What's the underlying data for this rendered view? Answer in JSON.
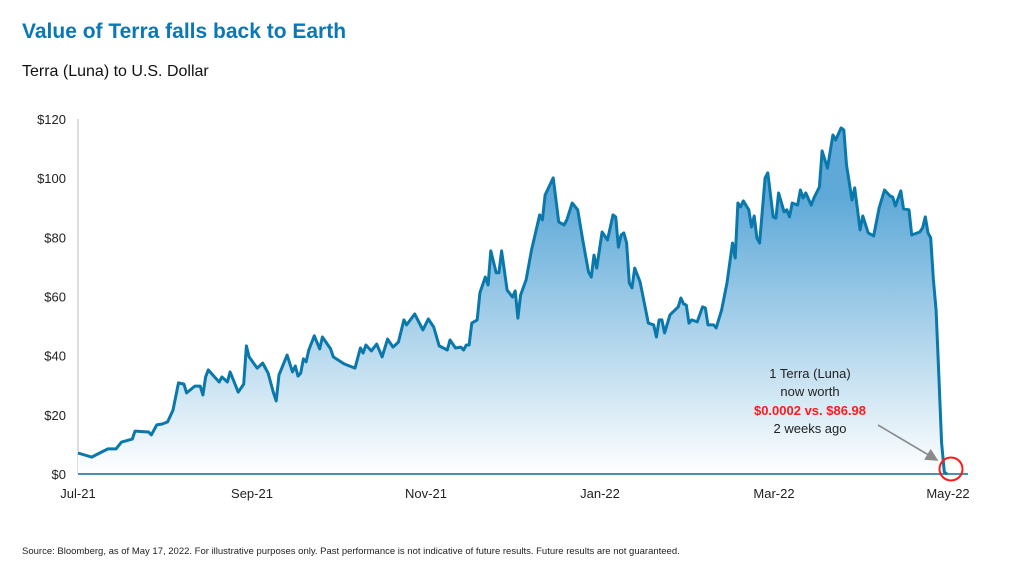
{
  "title": "Value of Terra falls back to Earth",
  "subtitle": "Terra (Luna) to U.S. Dollar",
  "source": "Source: Bloomberg, as of May 17, 2022. For illustrative purposes only. Past performance is not indicative of future results. Future results are not guaranteed.",
  "annotation": {
    "line1": "1 Terra (Luna)",
    "line2": "now worth",
    "line3": "$0.0002 vs. $86.98",
    "line4": "2 weeks ago",
    "highlight_color": "#ff1a1a"
  },
  "colors": {
    "title": "#0b78b5",
    "line": "#0a78ab",
    "fill_top": "#5ea9d8",
    "fill_bottom": "#ffffff"
  },
  "chart_data": {
    "type": "area",
    "title": "Value of Terra falls back to Earth",
    "subtitle": "Terra (Luna) to U.S. Dollar",
    "xlabel": "",
    "ylabel": "",
    "ylim": [
      0,
      120
    ],
    "xlim": [
      "2021-07-01",
      "2022-05-17"
    ],
    "grid": false,
    "y_ticks": [
      "$0",
      "$20",
      "$40",
      "$60",
      "$80",
      "$100",
      "$120"
    ],
    "x_ticks": [
      "Jul-21",
      "Sep-21",
      "Nov-21",
      "Jan-22",
      "Mar-22",
      "May-22"
    ],
    "points": [
      [
        "2021-07-01",
        7.1
      ],
      [
        "2021-07-06",
        5.7
      ],
      [
        "2021-07-12",
        8.5
      ],
      [
        "2021-07-15",
        8.5
      ],
      [
        "2021-07-17",
        10.8
      ],
      [
        "2021-07-21",
        11.8
      ],
      [
        "2021-07-22",
        14.5
      ],
      [
        "2021-07-27",
        14.2
      ],
      [
        "2021-07-28",
        13.2
      ],
      [
        "2021-07-30",
        16.6
      ],
      [
        "2021-08-01",
        16.9
      ],
      [
        "2021-08-03",
        17.6
      ],
      [
        "2021-08-05",
        21.6
      ],
      [
        "2021-08-07",
        30.8
      ],
      [
        "2021-08-09",
        30.4
      ],
      [
        "2021-08-10",
        27.4
      ],
      [
        "2021-08-13",
        29.7
      ],
      [
        "2021-08-15",
        29.7
      ],
      [
        "2021-08-16",
        26.7
      ],
      [
        "2021-08-17",
        32.8
      ],
      [
        "2021-08-18",
        35.2
      ],
      [
        "2021-08-20",
        33.1
      ],
      [
        "2021-08-22",
        31.1
      ],
      [
        "2021-08-23",
        32.8
      ],
      [
        "2021-08-25",
        31.1
      ],
      [
        "2021-08-26",
        34.5
      ],
      [
        "2021-08-29",
        27.7
      ],
      [
        "2021-08-31",
        30.4
      ],
      [
        "2021-09-01",
        43.3
      ],
      [
        "2021-09-02",
        39.6
      ],
      [
        "2021-09-05",
        35.8
      ],
      [
        "2021-09-07",
        37.5
      ],
      [
        "2021-09-09",
        34.1
      ],
      [
        "2021-09-11",
        27.4
      ],
      [
        "2021-09-12",
        24.7
      ],
      [
        "2021-09-13",
        33.5
      ],
      [
        "2021-09-16",
        40.2
      ],
      [
        "2021-09-18",
        34.5
      ],
      [
        "2021-09-19",
        36.5
      ],
      [
        "2021-09-20",
        33.1
      ],
      [
        "2021-09-21",
        34.1
      ],
      [
        "2021-09-22",
        38.9
      ],
      [
        "2021-09-23",
        37.9
      ],
      [
        "2021-09-24",
        41.9
      ],
      [
        "2021-09-26",
        46.7
      ],
      [
        "2021-09-28",
        42.3
      ],
      [
        "2021-09-29",
        46.3
      ],
      [
        "2021-10-02",
        42.3
      ],
      [
        "2021-10-03",
        39.6
      ],
      [
        "2021-10-07",
        37.2
      ],
      [
        "2021-10-11",
        35.8
      ],
      [
        "2021-10-13",
        42.6
      ],
      [
        "2021-10-14",
        40.9
      ],
      [
        "2021-10-15",
        43.6
      ],
      [
        "2021-10-17",
        41.6
      ],
      [
        "2021-10-19",
        43.9
      ],
      [
        "2021-10-21",
        39.6
      ],
      [
        "2021-10-23",
        45.6
      ],
      [
        "2021-10-25",
        42.9
      ],
      [
        "2021-10-27",
        44.6
      ],
      [
        "2021-10-29",
        52.1
      ],
      [
        "2021-10-30",
        50.4
      ],
      [
        "2021-11-02",
        54.1
      ],
      [
        "2021-11-05",
        48.7
      ],
      [
        "2021-11-07",
        52.4
      ],
      [
        "2021-11-09",
        49.7
      ],
      [
        "2021-11-11",
        43.3
      ],
      [
        "2021-11-14",
        41.9
      ],
      [
        "2021-11-15",
        45.3
      ],
      [
        "2021-11-17",
        42.6
      ],
      [
        "2021-11-19",
        42.9
      ],
      [
        "2021-11-20",
        41.9
      ],
      [
        "2021-11-21",
        43.6
      ],
      [
        "2021-11-22",
        43.6
      ],
      [
        "2021-11-23",
        51.0
      ],
      [
        "2021-11-25",
        52.1
      ],
      [
        "2021-11-26",
        61.2
      ],
      [
        "2021-11-28",
        66.6
      ],
      [
        "2021-11-29",
        63.9
      ],
      [
        "2021-11-30",
        75.4
      ],
      [
        "2021-12-02",
        68.0
      ],
      [
        "2021-12-03",
        68.0
      ],
      [
        "2021-12-04",
        75.4
      ],
      [
        "2021-12-06",
        62.2
      ],
      [
        "2021-12-08",
        59.8
      ],
      [
        "2021-12-09",
        61.9
      ],
      [
        "2021-12-10",
        52.7
      ],
      [
        "2021-12-11",
        60.5
      ],
      [
        "2021-12-13",
        65.6
      ],
      [
        "2021-12-15",
        75.7
      ],
      [
        "2021-12-18",
        87.6
      ],
      [
        "2021-12-19",
        85.9
      ],
      [
        "2021-12-20",
        94.3
      ],
      [
        "2021-12-23",
        100.1
      ],
      [
        "2021-12-25",
        85.2
      ],
      [
        "2021-12-27",
        84.2
      ],
      [
        "2021-12-28",
        85.9
      ],
      [
        "2021-12-30",
        91.6
      ],
      [
        "2022-01-01",
        89.3
      ],
      [
        "2022-01-03",
        78.4
      ],
      [
        "2022-01-05",
        68.3
      ],
      [
        "2022-01-06",
        66.6
      ],
      [
        "2022-01-07",
        74.0
      ],
      [
        "2022-01-08",
        69.6
      ],
      [
        "2022-01-10",
        81.8
      ],
      [
        "2022-01-12",
        79.1
      ],
      [
        "2022-01-14",
        87.6
      ],
      [
        "2022-01-15",
        86.9
      ],
      [
        "2022-01-16",
        76.7
      ],
      [
        "2022-01-17",
        80.8
      ],
      [
        "2022-01-18",
        81.5
      ],
      [
        "2022-01-19",
        78.1
      ],
      [
        "2022-01-20",
        64.6
      ],
      [
        "2022-01-21",
        62.9
      ],
      [
        "2022-01-22",
        69.6
      ],
      [
        "2022-01-24",
        64.9
      ],
      [
        "2022-01-27",
        51.0
      ],
      [
        "2022-01-29",
        50.4
      ],
      [
        "2022-01-30",
        46.3
      ],
      [
        "2022-01-31",
        52.1
      ],
      [
        "2022-02-01",
        52.1
      ],
      [
        "2022-02-02",
        47.7
      ],
      [
        "2022-02-04",
        53.8
      ],
      [
        "2022-02-07",
        56.5
      ],
      [
        "2022-02-08",
        59.5
      ],
      [
        "2022-02-09",
        57.5
      ],
      [
        "2022-02-10",
        57.1
      ],
      [
        "2022-02-11",
        51.0
      ],
      [
        "2022-02-12",
        52.1
      ],
      [
        "2022-02-14",
        51.4
      ],
      [
        "2022-02-16",
        56.5
      ],
      [
        "2022-02-17",
        56.1
      ],
      [
        "2022-02-18",
        50.4
      ],
      [
        "2022-02-20",
        50.4
      ],
      [
        "2022-02-21",
        49.4
      ],
      [
        "2022-02-23",
        55.4
      ],
      [
        "2022-02-25",
        64.6
      ],
      [
        "2022-02-27",
        78.1
      ],
      [
        "2022-02-28",
        73.0
      ],
      [
        "2022-03-01",
        91.6
      ],
      [
        "2022-03-02",
        90.3
      ],
      [
        "2022-03-03",
        92.3
      ],
      [
        "2022-03-05",
        89.3
      ],
      [
        "2022-03-06",
        83.5
      ],
      [
        "2022-03-07",
        87.2
      ],
      [
        "2022-03-08",
        79.8
      ],
      [
        "2022-03-09",
        78.1
      ],
      [
        "2022-03-11",
        100.1
      ],
      [
        "2022-03-12",
        101.8
      ],
      [
        "2022-03-14",
        86.9
      ],
      [
        "2022-03-15",
        86.5
      ],
      [
        "2022-03-16",
        95.0
      ],
      [
        "2022-03-18",
        88.6
      ],
      [
        "2022-03-19",
        89.3
      ],
      [
        "2022-03-20",
        86.9
      ],
      [
        "2022-03-21",
        91.6
      ],
      [
        "2022-03-23",
        90.9
      ],
      [
        "2022-03-24",
        96.0
      ],
      [
        "2022-03-25",
        93.3
      ],
      [
        "2022-03-26",
        95.0
      ],
      [
        "2022-03-28",
        90.9
      ],
      [
        "2022-03-29",
        93.3
      ],
      [
        "2022-03-31",
        97.0
      ],
      [
        "2022-04-01",
        109.2
      ],
      [
        "2022-04-03",
        103.4
      ],
      [
        "2022-04-05",
        114.6
      ],
      [
        "2022-04-06",
        112.9
      ],
      [
        "2022-04-08",
        117.0
      ],
      [
        "2022-04-09",
        116.3
      ],
      [
        "2022-04-10",
        104.5
      ],
      [
        "2022-04-12",
        92.6
      ],
      [
        "2022-04-13",
        96.7
      ],
      [
        "2022-04-15",
        82.5
      ],
      [
        "2022-04-16",
        87.2
      ],
      [
        "2022-04-18",
        81.5
      ],
      [
        "2022-04-20",
        80.5
      ],
      [
        "2022-04-22",
        89.9
      ],
      [
        "2022-04-24",
        96.0
      ],
      [
        "2022-04-26",
        94.0
      ],
      [
        "2022-04-27",
        93.6
      ],
      [
        "2022-04-28",
        90.6
      ],
      [
        "2022-04-30",
        95.7
      ],
      [
        "2022-05-01",
        89.6
      ],
      [
        "2022-05-03",
        89.3
      ],
      [
        "2022-05-04",
        80.8
      ],
      [
        "2022-05-07",
        81.8
      ],
      [
        "2022-05-08",
        83.2
      ],
      [
        "2022-05-09",
        86.9
      ],
      [
        "2022-05-10",
        81.5
      ],
      [
        "2022-05-11",
        79.8
      ],
      [
        "2022-05-12",
        65.6
      ],
      [
        "2022-05-13",
        55.4
      ],
      [
        "2022-05-14",
        32.8
      ],
      [
        "2022-05-15",
        10.5
      ],
      [
        "2022-05-16",
        0.7
      ],
      [
        "2022-05-17",
        0.0002
      ]
    ]
  }
}
